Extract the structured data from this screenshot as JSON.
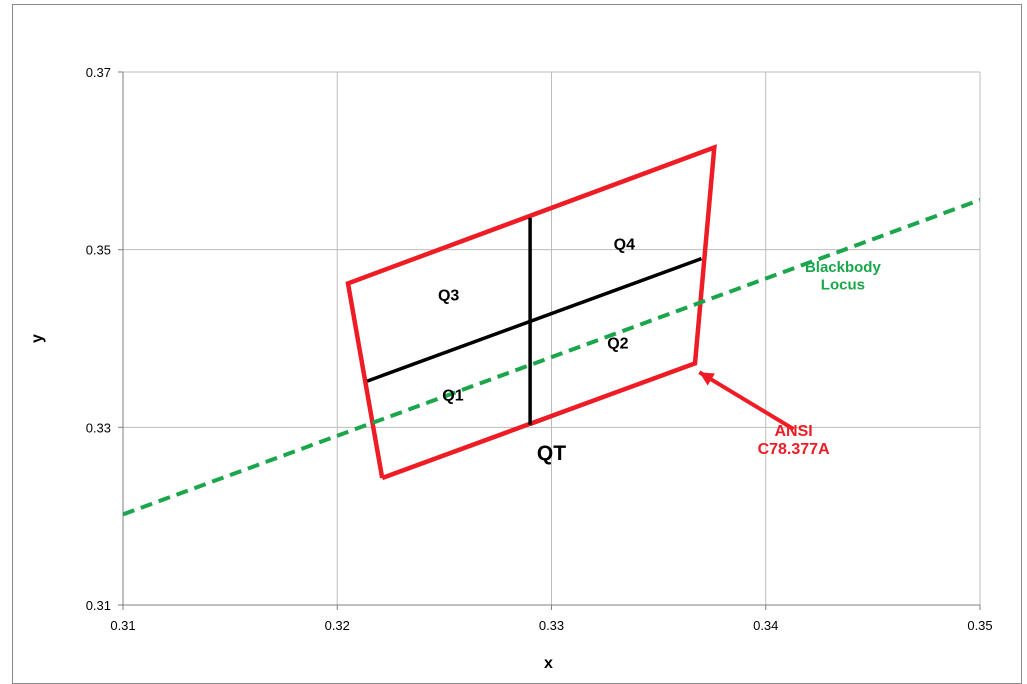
{
  "chart_data": {
    "type": "line",
    "title": "",
    "xlabel": "x",
    "ylabel": "y",
    "xlim": [
      0.31,
      0.35
    ],
    "ylim": [
      0.31,
      0.37
    ],
    "x_ticks": [
      0.31,
      0.32,
      0.33,
      0.34,
      0.35
    ],
    "x_tick_labels": [
      "0.31",
      "0.32",
      "0.33",
      "0.34",
      "0.35"
    ],
    "y_ticks": [
      0.31,
      0.33,
      0.35,
      0.37
    ],
    "y_tick_labels": [
      "0.31",
      "0.33",
      "0.35",
      "0.37"
    ],
    "grid": true,
    "colors": {
      "boundary": "#ee1c25",
      "quadrant": "#000000",
      "locus": "#1aa64a"
    },
    "series": [
      {
        "role": "ansi_quadrangle",
        "x": [
          0.3221,
          0.3205,
          0.3376,
          0.3367,
          0.3221
        ],
        "y": [
          0.3243,
          0.3462,
          0.3615,
          0.3372,
          0.3243
        ]
      },
      {
        "role": "quadrant_divider_horizontal",
        "x": [
          0.3214,
          0.337
        ],
        "y": [
          0.3352,
          0.349
        ]
      },
      {
        "role": "quadrant_divider_vertical",
        "x": [
          0.329,
          0.329
        ],
        "y": [
          0.3536,
          0.3303
        ]
      },
      {
        "role": "quadrant_bottom_segment",
        "x": [
          0.329,
          0.3367
        ],
        "y": [
          0.3303,
          0.3372
        ]
      },
      {
        "name": "Blackbody Locus",
        "role": "blackbody_locus",
        "dashed": true,
        "x": [
          0.31,
          0.35
        ],
        "y": [
          0.3202,
          0.3556
        ]
      }
    ],
    "annotations": [
      {
        "text": "Q1",
        "x": 0.3254,
        "y": 0.333
      },
      {
        "text": "Q2",
        "x": 0.3331,
        "y": 0.3389
      },
      {
        "text": "Q3",
        "x": 0.3252,
        "y": 0.3443
      },
      {
        "text": "Q4",
        "x": 0.3334,
        "y": 0.35
      },
      {
        "text": "QT",
        "x": 0.33,
        "y": 0.3263
      },
      {
        "text": "Blackbody",
        "x": 0.3436,
        "y": 0.3475
      },
      {
        "text": "Locus",
        "x": 0.3436,
        "y": 0.3455
      },
      {
        "text": "ANSI",
        "x": 0.3413,
        "y": 0.329
      },
      {
        "text": "C78.377A",
        "x": 0.3413,
        "y": 0.327
      }
    ],
    "arrow": {
      "from": [
        0.3413,
        0.3298
      ],
      "to": [
        0.3369,
        0.3362
      ]
    }
  }
}
